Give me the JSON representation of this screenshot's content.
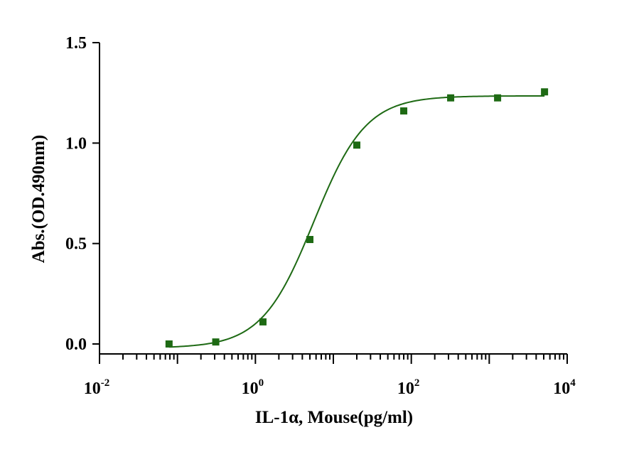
{
  "chart_data": {
    "type": "scatter",
    "title": "",
    "xlabel": "IL-1α, Mouse(pg/ml)",
    "ylabel": "Abs.(OD.490nm)",
    "xscale": "log10",
    "xlim": [
      0.01,
      10000
    ],
    "ylim": [
      -0.05,
      1.5
    ],
    "x_ticks": [
      {
        "base": "10",
        "exp": "-2",
        "value": 0.01
      },
      {
        "base": "10",
        "exp": "0",
        "value": 1
      },
      {
        "base": "10",
        "exp": "2",
        "value": 100
      },
      {
        "base": "10",
        "exp": "4",
        "value": 10000
      }
    ],
    "y_ticks": [
      {
        "label": "0.0",
        "value": 0.0
      },
      {
        "label": "0.5",
        "value": 0.5
      },
      {
        "label": "1.0",
        "value": 1.0
      },
      {
        "label": "1.5",
        "value": 1.5
      }
    ],
    "grid": false,
    "legend": "none",
    "color": "#1e6a14",
    "series": [
      {
        "points": [
          {
            "x": 0.078,
            "y": 0.0
          },
          {
            "x": 0.31,
            "y": 0.01
          },
          {
            "x": 1.25,
            "y": 0.11
          },
          {
            "x": 5.0,
            "y": 0.52
          },
          {
            "x": 20,
            "y": 0.99
          },
          {
            "x": 80,
            "y": 1.16
          },
          {
            "x": 320,
            "y": 1.225
          },
          {
            "x": 1280,
            "y": 1.225
          },
          {
            "x": 5120,
            "y": 1.255
          }
        ],
        "fit": {
          "model": "4PL",
          "bottom": -0.02,
          "top": 1.235,
          "ec50": 5.6,
          "hill": 1.3,
          "x_range": [
            0.078,
            5120
          ]
        }
      }
    ]
  }
}
